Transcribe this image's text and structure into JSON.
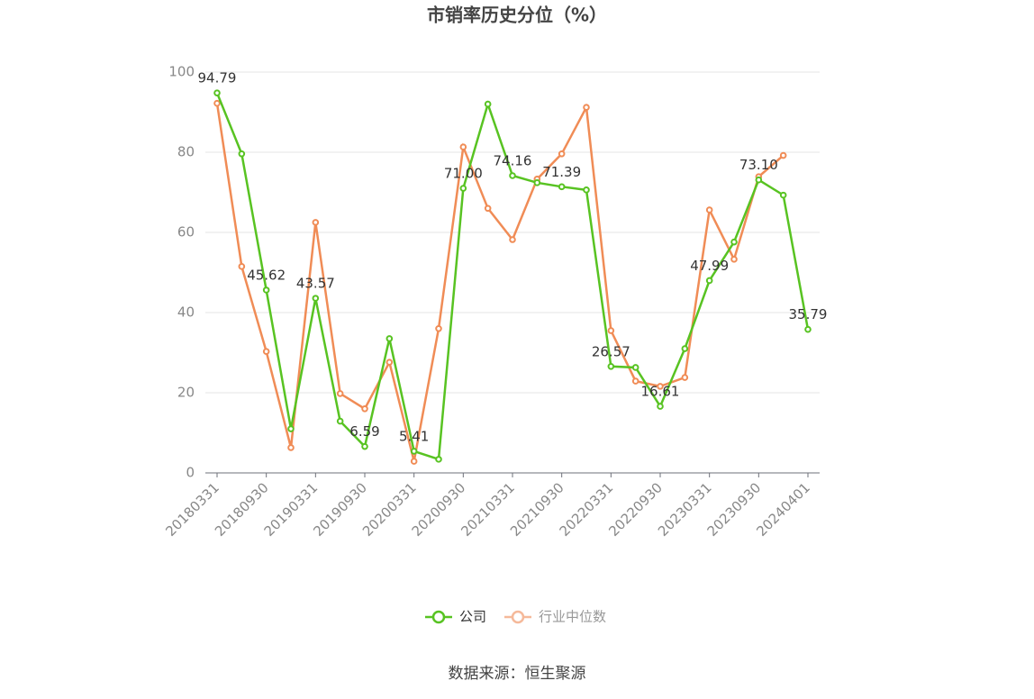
{
  "chart_data": {
    "type": "line",
    "title": "市销率历史分位（%）",
    "source": "数据来源：恒生聚源",
    "categories": [
      "20180331",
      null,
      "20180930",
      null,
      "20190331",
      null,
      "20190930",
      null,
      "20200331",
      null,
      "20200930",
      null,
      "20210331",
      null,
      "20210930",
      null,
      "20220331",
      null,
      "20220930",
      null,
      "20230331",
      null,
      "20230930",
      null,
      "20240401"
    ],
    "series": [
      {
        "name": "公司",
        "color": "#58c322",
        "values": [
          94.79,
          79.6,
          45.62,
          11.0,
          43.57,
          12.9,
          6.59,
          33.5,
          5.41,
          3.4,
          71.0,
          92.0,
          74.16,
          72.4,
          71.39,
          70.6,
          26.57,
          26.3,
          16.61,
          31.0,
          47.99,
          57.6,
          73.1,
          69.3,
          35.79
        ],
        "value_labels": [
          "94.79",
          null,
          "45.62",
          null,
          "43.57",
          null,
          "6.59",
          null,
          "5.41",
          null,
          "71.00",
          null,
          "74.16",
          null,
          "71.39",
          null,
          "26.57",
          null,
          "16.61",
          null,
          "47.99",
          null,
          "73.10",
          null,
          "35.79"
        ]
      },
      {
        "name": "行业中位数",
        "color": "#f08c56",
        "values": [
          92.2,
          51.5,
          30.3,
          6.3,
          62.5,
          19.8,
          16.0,
          27.6,
          2.9,
          36.0,
          81.3,
          66.0,
          58.2,
          73.3,
          79.6,
          91.2,
          35.5,
          22.9,
          21.6,
          23.8,
          65.6,
          53.3,
          73.9,
          79.2,
          null
        ]
      }
    ],
    "ylim": [
      0,
      100
    ],
    "yticks": [
      0,
      20,
      40,
      60,
      80,
      100
    ],
    "grid": true
  }
}
